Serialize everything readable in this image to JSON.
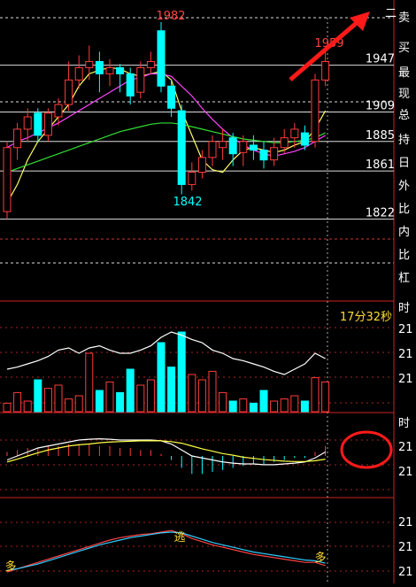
{
  "price_panel": {
    "range": [
      2000,
      1810
    ],
    "ticks": [
      1947,
      1909,
      1885,
      1861,
      1822
    ],
    "annotations": {
      "high": "1982",
      "last_high": "1959",
      "low": "1842",
      "corner": "二"
    },
    "candles": [
      {
        "o": 1828,
        "c": 1880,
        "h": 1885,
        "l": 1822
      },
      {
        "o": 1880,
        "c": 1895,
        "h": 1900,
        "l": 1870
      },
      {
        "o": 1895,
        "c": 1905,
        "h": 1912,
        "l": 1885
      },
      {
        "o": 1908,
        "c": 1890,
        "h": 1912,
        "l": 1885
      },
      {
        "o": 1890,
        "c": 1908,
        "h": 1912,
        "l": 1885
      },
      {
        "o": 1905,
        "c": 1915,
        "h": 1920,
        "l": 1898
      },
      {
        "o": 1915,
        "c": 1935,
        "h": 1950,
        "l": 1910
      },
      {
        "o": 1935,
        "c": 1945,
        "h": 1955,
        "l": 1928
      },
      {
        "o": 1945,
        "c": 1950,
        "h": 1963,
        "l": 1935
      },
      {
        "o": 1950,
        "c": 1940,
        "h": 1958,
        "l": 1925
      },
      {
        "o": 1940,
        "c": 1945,
        "h": 1952,
        "l": 1930
      },
      {
        "o": 1945,
        "c": 1940,
        "h": 1948,
        "l": 1925
      },
      {
        "o": 1940,
        "c": 1922,
        "h": 1945,
        "l": 1915
      },
      {
        "o": 1925,
        "c": 1945,
        "h": 1950,
        "l": 1920
      },
      {
        "o": 1945,
        "c": 1950,
        "h": 1958,
        "l": 1940
      },
      {
        "o": 1975,
        "c": 1930,
        "h": 1982,
        "l": 1925
      },
      {
        "o": 1930,
        "c": 1912,
        "h": 1935,
        "l": 1905
      },
      {
        "o": 1910,
        "c": 1850,
        "h": 1915,
        "l": 1842
      },
      {
        "o": 1850,
        "c": 1860,
        "h": 1868,
        "l": 1845
      },
      {
        "o": 1860,
        "c": 1872,
        "h": 1878,
        "l": 1855
      },
      {
        "o": 1872,
        "c": 1885,
        "h": 1890,
        "l": 1865
      },
      {
        "o": 1880,
        "c": 1885,
        "h": 1895,
        "l": 1870
      },
      {
        "o": 1888,
        "c": 1875,
        "h": 1892,
        "l": 1865
      },
      {
        "o": 1876,
        "c": 1885,
        "h": 1890,
        "l": 1865
      },
      {
        "o": 1882,
        "c": 1878,
        "h": 1890,
        "l": 1870
      },
      {
        "o": 1878,
        "c": 1870,
        "h": 1885,
        "l": 1863
      },
      {
        "o": 1870,
        "c": 1880,
        "h": 1888,
        "l": 1865
      },
      {
        "o": 1880,
        "c": 1888,
        "h": 1895,
        "l": 1875
      },
      {
        "o": 1888,
        "c": 1895,
        "h": 1900,
        "l": 1880
      },
      {
        "o": 1892,
        "c": 1882,
        "h": 1898,
        "l": 1878
      },
      {
        "o": 1885,
        "c": 1935,
        "h": 1940,
        "l": 1880
      },
      {
        "o": 1935,
        "c": 1950,
        "h": 1959,
        "l": 1930
      }
    ],
    "lines": [
      {
        "color": "#ffff66",
        "values": [
          1835,
          1850,
          1870,
          1885,
          1895,
          1905,
          1915,
          1930,
          1940,
          1943,
          1945,
          1944,
          1940,
          1938,
          1940,
          1942,
          1935,
          1910,
          1890,
          1870,
          1862,
          1860,
          1870,
          1878,
          1880,
          1878,
          1876,
          1878,
          1882,
          1885,
          1895,
          1910
        ]
      },
      {
        "color": "#ff44ff",
        "values": [
          1880,
          1885,
          1888,
          1892,
          1896,
          1900,
          1905,
          1910,
          1915,
          1920,
          1925,
          1930,
          1935,
          1937,
          1940,
          1940,
          1938,
          1930,
          1922,
          1912,
          1903,
          1895,
          1888,
          1882,
          1878,
          1875,
          1873,
          1875,
          1877,
          1880,
          1885,
          1890
        ]
      },
      {
        "color": "#33dd33",
        "values": [
          1860,
          1863,
          1866,
          1869,
          1872,
          1875,
          1878,
          1881,
          1884,
          1887,
          1890,
          1893,
          1895,
          1897,
          1899,
          1900,
          1900,
          1899,
          1897,
          1895,
          1893,
          1891,
          1889,
          1887,
          1886,
          1885,
          1884,
          1884,
          1885,
          1886,
          1888,
          1892
        ]
      }
    ]
  },
  "volume_panel": {
    "range": [
      0,
      100
    ],
    "timer": "17分32秒",
    "values": [
      8,
      18,
      10,
      30,
      22,
      25,
      12,
      15,
      55,
      20,
      28,
      18,
      40,
      25,
      30,
      65,
      42,
      75,
      35,
      30,
      38,
      18,
      10,
      12,
      8,
      20,
      10,
      12,
      15,
      10,
      32,
      28
    ],
    "ma": [
      40,
      42,
      45,
      48,
      52,
      58,
      60,
      55,
      60,
      62,
      58,
      55,
      55,
      58,
      62,
      70,
      75,
      72,
      68,
      65,
      58,
      55,
      50,
      48,
      45,
      42,
      38,
      35,
      40,
      45,
      55,
      50
    ]
  },
  "macd_panel": {
    "range": [
      -10,
      10
    ],
    "bars": [
      1,
      1.5,
      2,
      2,
      2.5,
      2.5,
      3,
      3,
      3,
      2.5,
      2.5,
      2,
      2,
      1.5,
      1.5,
      0.5,
      -1,
      -3,
      -4.5,
      -4.5,
      -4,
      -3.5,
      -3,
      -2.5,
      -2,
      -2,
      -1.5,
      -1,
      -0.5,
      -0.5,
      1,
      2.5
    ],
    "dif": [
      -1,
      0,
      1,
      2,
      2.5,
      3,
      3.5,
      4,
      4.2,
      4.3,
      4.2,
      4,
      4,
      4,
      4,
      3.8,
      3,
      1.5,
      0,
      -0.5,
      -1,
      -1.5,
      -1.8,
      -2,
      -2,
      -2.2,
      -2.2,
      -2,
      -1.8,
      -1.5,
      -0.5,
      1
    ],
    "dea": [
      -1.5,
      -0.8,
      0,
      0.8,
      1.5,
      2,
      2.5,
      2.8,
      3,
      3.3,
      3.5,
      3.6,
      3.7,
      3.8,
      3.8,
      3.8,
      3.6,
      3.2,
      2.5,
      1.8,
      1.2,
      0.6,
      0.2,
      -0.3,
      -0.6,
      -0.9,
      -1.1,
      -1.3,
      -1.4,
      -1.4,
      -1.2,
      -0.8
    ]
  },
  "kdj_panel": {
    "range": [
      0,
      100
    ],
    "signal_escape": "逃",
    "signal_long_left": "多",
    "signal_long_right": "多",
    "k": [
      10,
      14,
      18,
      22,
      26,
      30,
      34,
      38,
      42,
      46,
      50,
      53,
      55,
      57,
      58,
      60,
      62,
      58,
      52,
      48,
      44,
      41,
      38,
      35,
      32,
      30,
      28,
      26,
      24,
      22,
      22,
      18
    ],
    "d": [
      12,
      14,
      17,
      20,
      24,
      28,
      32,
      36,
      40,
      44,
      47,
      50,
      53,
      55,
      57,
      59,
      60,
      59,
      55,
      51,
      47,
      44,
      41,
      38,
      35,
      33,
      31,
      29,
      27,
      25,
      24,
      21
    ]
  },
  "sidebar": [
    "卖",
    "买",
    "最",
    "现",
    "总",
    "持",
    "日",
    "外",
    "比",
    "内",
    "比",
    "杠",
    "时",
    "21",
    "21",
    "21",
    "时",
    "21",
    "21",
    "21",
    "21",
    "21"
  ]
}
